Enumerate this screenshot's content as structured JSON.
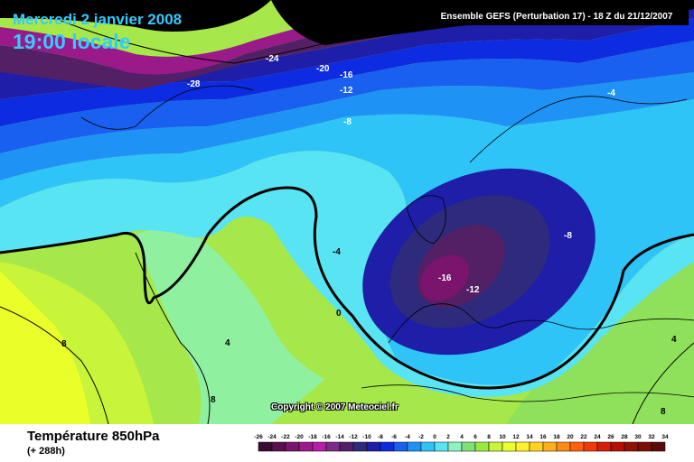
{
  "header": {
    "date": "Mercredi 2 janvier 2008",
    "local_time": "19:00 locale",
    "run_info": "Ensemble GEFS (Perturbation 17)  -  18 Z du 21/12/2007"
  },
  "copyright": "Copyright © 2007 Meteociel.fr",
  "footer": {
    "variable": "Température 850hPa",
    "lead_time": "(+ 288h)"
  },
  "contour_labels": [
    {
      "text": "-24"
    },
    {
      "text": "-28"
    },
    {
      "text": "-20"
    },
    {
      "text": "-16"
    },
    {
      "text": "-12"
    },
    {
      "text": "-8"
    },
    {
      "text": "-4"
    },
    {
      "text": "-4"
    },
    {
      "text": "-8"
    },
    {
      "text": "-16"
    },
    {
      "text": "-12"
    },
    {
      "text": "0"
    },
    {
      "text": "8"
    },
    {
      "text": "4"
    },
    {
      "text": "8"
    },
    {
      "text": "4"
    },
    {
      "text": "8"
    }
  ],
  "color_scale": {
    "values": [
      "-26",
      "-24",
      "-22",
      "-20",
      "-18",
      "-16",
      "-14",
      "-12",
      "-10",
      "-8",
      "-6",
      "-4",
      "-2",
      "0",
      "2",
      "4",
      "6",
      "8",
      "10",
      "12",
      "14",
      "16",
      "18",
      "20",
      "22",
      "24",
      "26",
      "28",
      "30",
      "32",
      "34"
    ],
    "colors": [
      "#3a0b32",
      "#5a0f4e",
      "#7a146c",
      "#9a1a8a",
      "#b61fa6",
      "#7a2c86",
      "#532066",
      "#2e2a7c",
      "#1e1ea8",
      "#0d2be0",
      "#1a60f0",
      "#1f93f5",
      "#2fc4f7",
      "#58e4f2",
      "#8ff0c0",
      "#7fe07a",
      "#9aea3c",
      "#c8f43a",
      "#eaff2a",
      "#fff12a",
      "#ffd21f",
      "#ffaf18",
      "#ff8a12",
      "#ff600c",
      "#f13a08",
      "#d61f06",
      "#b80f04",
      "#951004",
      "#7a0f0a",
      "#5a0a0a"
    ]
  }
}
